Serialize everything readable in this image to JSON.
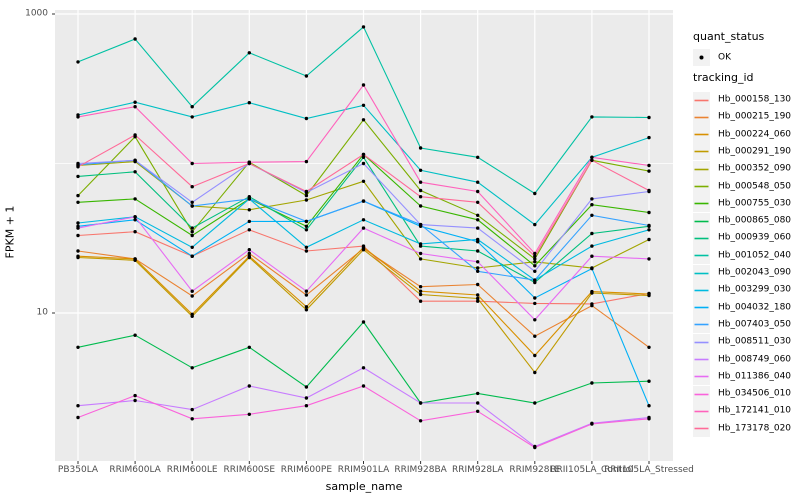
{
  "figure": {
    "background": "#ffffff",
    "panel_bg": "#ebebeb",
    "grid_color": "#ffffff",
    "legend_key_bg": "#f2f2f2",
    "tick_color": "#333333",
    "tick_label_color": "#4d4d4d",
    "point_color": "#000000"
  },
  "axes": {
    "y_title": "FPKM + 1",
    "x_title": "sample_name",
    "y_ticks": [
      {
        "label": "1000",
        "value": 1000
      },
      {
        "label": "10",
        "value": 10
      }
    ],
    "y_minor_breaks": [
      100
    ]
  },
  "legend": {
    "quant_status_title": "quant_status",
    "quant_status_items": [
      {
        "label": "OK",
        "marker": "black-point"
      }
    ],
    "tracking_id_title": "tracking_id"
  },
  "chart_data": {
    "type": "line",
    "title": "",
    "xlabel": "sample_name",
    "ylabel": "FPKM + 1",
    "y_scale": "log10",
    "y_axis_breaks": [
      10,
      1000
    ],
    "y_axis_minor_breaks": [
      100
    ],
    "ylim": [
      1,
      1100
    ],
    "grid": true,
    "legend_position": "right",
    "point_marker": "black-dot",
    "quant_status": "OK",
    "categories": [
      "PB350LA",
      "RRIM600LA",
      "RRIM600LE",
      "RRIM600SE",
      "RRIM600PE",
      "RRIM901LA",
      "RRIM928BA",
      "RRIM928LA",
      "RRIM928LE",
      "RRII105LA_Control",
      "RRII105LA_Stressed"
    ],
    "series": [
      {
        "name": "Hb_000158_130",
        "color": "#F8766D",
        "values": [
          33,
          35,
          24,
          36,
          26,
          28,
          12,
          12,
          11.6,
          11.5,
          13.5
        ]
      },
      {
        "name": "Hb_000215_190",
        "color": "#EA8331",
        "values": [
          26,
          23,
          13,
          25,
          13.2,
          27,
          15,
          15.5,
          7,
          11.2,
          5.9
        ]
      },
      {
        "name": "Hb_000224_060",
        "color": "#D89000",
        "values": [
          24,
          23,
          9.8,
          24,
          11,
          27.5,
          14,
          13.2,
          5.2,
          13.9,
          13.4
        ]
      },
      {
        "name": "Hb_000291_190",
        "color": "#C09B00",
        "values": [
          23.5,
          22.5,
          9.5,
          23.5,
          10.5,
          26.5,
          13.3,
          12.5,
          4,
          13.6,
          13.1
        ]
      },
      {
        "name": "Hb_000352_090",
        "color": "#A3A500",
        "values": [
          97,
          103,
          52,
          49,
          57,
          76,
          23,
          20,
          22,
          20,
          31
        ]
      },
      {
        "name": "Hb_000548_050",
        "color": "#7CAE00",
        "values": [
          61,
          151,
          35,
          102,
          61,
          196,
          66,
          45,
          23,
          105,
          89
        ]
      },
      {
        "name": "Hb_000755_030",
        "color": "#39B600",
        "values": [
          55,
          58,
          33,
          58,
          38,
          115,
          52,
          42,
          20.7,
          53,
          47
        ]
      },
      {
        "name": "Hb_000865_080",
        "color": "#00BB4E",
        "values": [
          5.9,
          7.1,
          4.3,
          5.9,
          3.2,
          8.7,
          2.5,
          2.9,
          2.5,
          3.4,
          3.5
        ]
      },
      {
        "name": "Hb_000939_060",
        "color": "#00BF7D",
        "values": [
          82,
          88,
          37,
          60,
          36,
          110,
          28,
          26,
          16,
          34,
          38
        ]
      },
      {
        "name": "Hb_001052_040",
        "color": "#00C1A3",
        "values": [
          478,
          680,
          240,
          550,
          385,
          820,
          127,
          110,
          63,
          205,
          203
        ]
      },
      {
        "name": "Hb_002043_090",
        "color": "#00BFC4",
        "values": [
          211,
          257,
          205,
          255,
          200,
          245,
          90,
          75,
          39,
          110,
          149
        ]
      },
      {
        "name": "Hb_003299_030",
        "color": "#00BAE0",
        "values": [
          40,
          44,
          27.5,
          58,
          27.5,
          42,
          29,
          31,
          16.6,
          28,
          36
        ]
      },
      {
        "name": "Hb_004032_180",
        "color": "#00B0F6",
        "values": [
          38,
          42,
          24,
          41,
          41,
          56,
          38,
          30,
          12.6,
          19.8,
          2.4
        ]
      },
      {
        "name": "Hb_007403_050",
        "color": "#35A2FF",
        "values": [
          98,
          105,
          52,
          58,
          41,
          56,
          39,
          19,
          16.6,
          45,
          38.5
        ]
      },
      {
        "name": "Hb_008511_030",
        "color": "#9590FF",
        "values": [
          100,
          105,
          55,
          100,
          64,
          100,
          39,
          37,
          19,
          58,
          65
        ]
      },
      {
        "name": "Hb_008749_060",
        "color": "#C77CFF",
        "values": [
          2.4,
          2.6,
          2.26,
          3.25,
          2.7,
          4.3,
          2.5,
          2.5,
          1.28,
          1.83,
          2.0
        ]
      },
      {
        "name": "Hb_011386_040",
        "color": "#E76BF3",
        "values": [
          37,
          44,
          14,
          26.5,
          14,
          37,
          25,
          22,
          9,
          24,
          23
        ]
      },
      {
        "name": "Hb_034506_010",
        "color": "#FA62DB",
        "values": [
          2.0,
          2.8,
          1.96,
          2.1,
          2.4,
          3.25,
          1.9,
          2.2,
          1.26,
          1.81,
          1.96
        ]
      },
      {
        "name": "Hb_172141_010",
        "color": "#FF62BC",
        "values": [
          205,
          240,
          100,
          102,
          103,
          335,
          75,
          65,
          25,
          110,
          97
        ]
      },
      {
        "name": "Hb_173178_020",
        "color": "#FF6A98",
        "values": [
          95,
          155,
          70,
          100,
          65,
          115,
          60,
          55,
          24,
          105,
          66
        ]
      }
    ]
  }
}
